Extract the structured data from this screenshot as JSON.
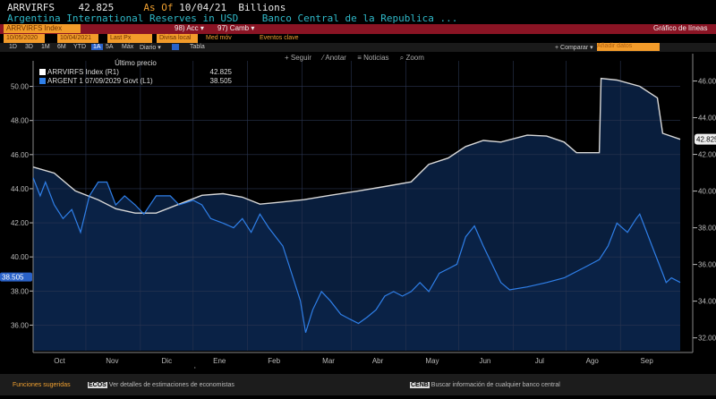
{
  "header": {
    "ticker": "ARRVIRFS",
    "value": "42.825",
    "as_of_label": "As Of",
    "as_of_date": "10/04/21",
    "units": "Billions",
    "description": "Argentina International Reserves in USD",
    "source": "Banco Central de la Republica ..."
  },
  "toolbar": {
    "security": "ARRVIRFS Index",
    "security_suffix": "",
    "acc": "98) Acc ▾",
    "camb": "97) Camb ▾",
    "chart_type": "Gráfico de líneas",
    "start_date": "10/05/2020",
    "end_date": "10/04/2021",
    "field": "Last Px",
    "currency": "Divisa local",
    "med_mov": "Med móv",
    "eventos": "Eventos clave",
    "comparar": "+ Comparar ▾",
    "search_placeholder": "Añadir datos",
    "periods": [
      "1D",
      "3D",
      "1M",
      "6M",
      "YTD",
      "1A",
      "5A",
      "Máx"
    ],
    "selected_period": "1A",
    "frequency": "Diario ▾",
    "tabla": "Tabla"
  },
  "chart_tools": {
    "seguir": "+ Seguir",
    "anotar": "⁄ Anotar",
    "noticias": "≡ Noticias",
    "zoom": "⌕ Zoom"
  },
  "legend": {
    "title": "Último precio",
    "series": [
      {
        "label": "ARRVIRFS Index  (R1)",
        "value": "42.825",
        "color": "#ffffff"
      },
      {
        "label": "ARGENT 1 07/09/2029 Govt  (L1)",
        "value": "38.505",
        "color": "#2f7fe8"
      }
    ]
  },
  "chart_data": {
    "type": "line",
    "x_unit": "days since 2020-10-01",
    "x_ticks": [
      "Oct",
      "Nov",
      "Dic",
      "Ene",
      "Feb",
      "Mar",
      "Abr",
      "May",
      "Jun",
      "Jul",
      "Ago",
      "Sep"
    ],
    "x_years": [
      "2020",
      "2021"
    ],
    "left_axis": {
      "ticks": [
        "36.00",
        "38.00",
        "40.00",
        "42.00",
        "44.00",
        "46.00",
        "48.00",
        "50.00"
      ],
      "range": [
        34.5,
        51.5
      ],
      "last_label": "38.505"
    },
    "right_axis": {
      "ticks": [
        "32.00",
        "34.00",
        "36.00",
        "38.00",
        "40.00",
        "42.00",
        "44.00",
        "46.00"
      ],
      "range": [
        31.3,
        47.1
      ],
      "last_label": "42.825"
    },
    "series": [
      {
        "name": "ARRVIRFS Index (R1)",
        "axis": "right",
        "color": "#d8d8d8",
        "x": [
          0,
          12,
          24,
          37,
          47,
          58,
          70,
          83,
          96,
          108,
          119,
          129,
          139,
          154,
          169,
          185,
          200,
          215,
          225,
          236,
          246,
          256,
          266,
          281,
          292,
          302,
          309,
          322,
          323,
          332,
          345,
          355,
          358,
          368
        ],
        "y": [
          41.31,
          40.98,
          40.01,
          39.52,
          39.04,
          38.8,
          38.8,
          39.29,
          39.77,
          39.86,
          39.67,
          39.29,
          39.38,
          39.53,
          39.77,
          40.01,
          40.25,
          40.5,
          41.46,
          41.8,
          42.43,
          42.76,
          42.67,
          43.05,
          43.0,
          42.67,
          42.09,
          42.09,
          46.14,
          46.05,
          45.71,
          45.08,
          43.15,
          42.825
        ]
      },
      {
        "name": "ARGENT 1 07/09/2029 Govt (L1)",
        "axis": "left",
        "color": "#2f7fe8",
        "x": [
          0,
          4,
          7,
          12,
          17,
          22,
          27,
          32,
          37,
          42,
          47,
          52,
          58,
          63,
          70,
          78,
          83,
          91,
          96,
          101,
          108,
          114,
          119,
          124,
          129,
          134,
          142,
          147,
          152,
          155,
          159,
          164,
          169,
          175,
          180,
          185,
          190,
          195,
          200,
          205,
          210,
          215,
          220,
          225,
          231,
          236,
          241,
          246,
          251,
          256,
          261,
          266,
          271,
          281,
          292,
          302,
          312,
          317,
          322,
          327,
          332,
          338,
          343,
          345,
          348,
          353,
          358,
          360,
          363,
          368
        ],
        "y": [
          44.65,
          43.58,
          44.39,
          43.05,
          42.25,
          42.78,
          41.44,
          43.58,
          44.39,
          44.39,
          43.05,
          43.58,
          43.05,
          42.51,
          43.58,
          43.58,
          43.05,
          43.32,
          43.05,
          42.25,
          41.98,
          41.71,
          42.25,
          41.44,
          42.51,
          41.71,
          40.64,
          39.04,
          37.43,
          35.56,
          36.9,
          37.97,
          37.43,
          36.63,
          36.36,
          36.1,
          36.47,
          36.9,
          37.7,
          37.97,
          37.7,
          37.97,
          38.5,
          37.97,
          39.04,
          39.3,
          39.57,
          41.18,
          41.82,
          40.64,
          39.57,
          38.5,
          38.07,
          38.24,
          38.5,
          38.77,
          39.3,
          39.57,
          39.84,
          40.64,
          41.98,
          41.44,
          42.25,
          42.51,
          41.71,
          40.37,
          39.04,
          38.5,
          38.77,
          38.505
        ]
      }
    ]
  },
  "footer": {
    "label": "Funciones sugeridas",
    "items": [
      {
        "code": "ECOS",
        "text": "Ver detalles de estimaciones de economistas"
      },
      {
        "code": "CENB",
        "text": "Buscar información de cualquier banco central"
      }
    ]
  },
  "colors": {
    "orange": "#f29b2a",
    "red": "#8a1424",
    "fill": "#0b2348"
  }
}
